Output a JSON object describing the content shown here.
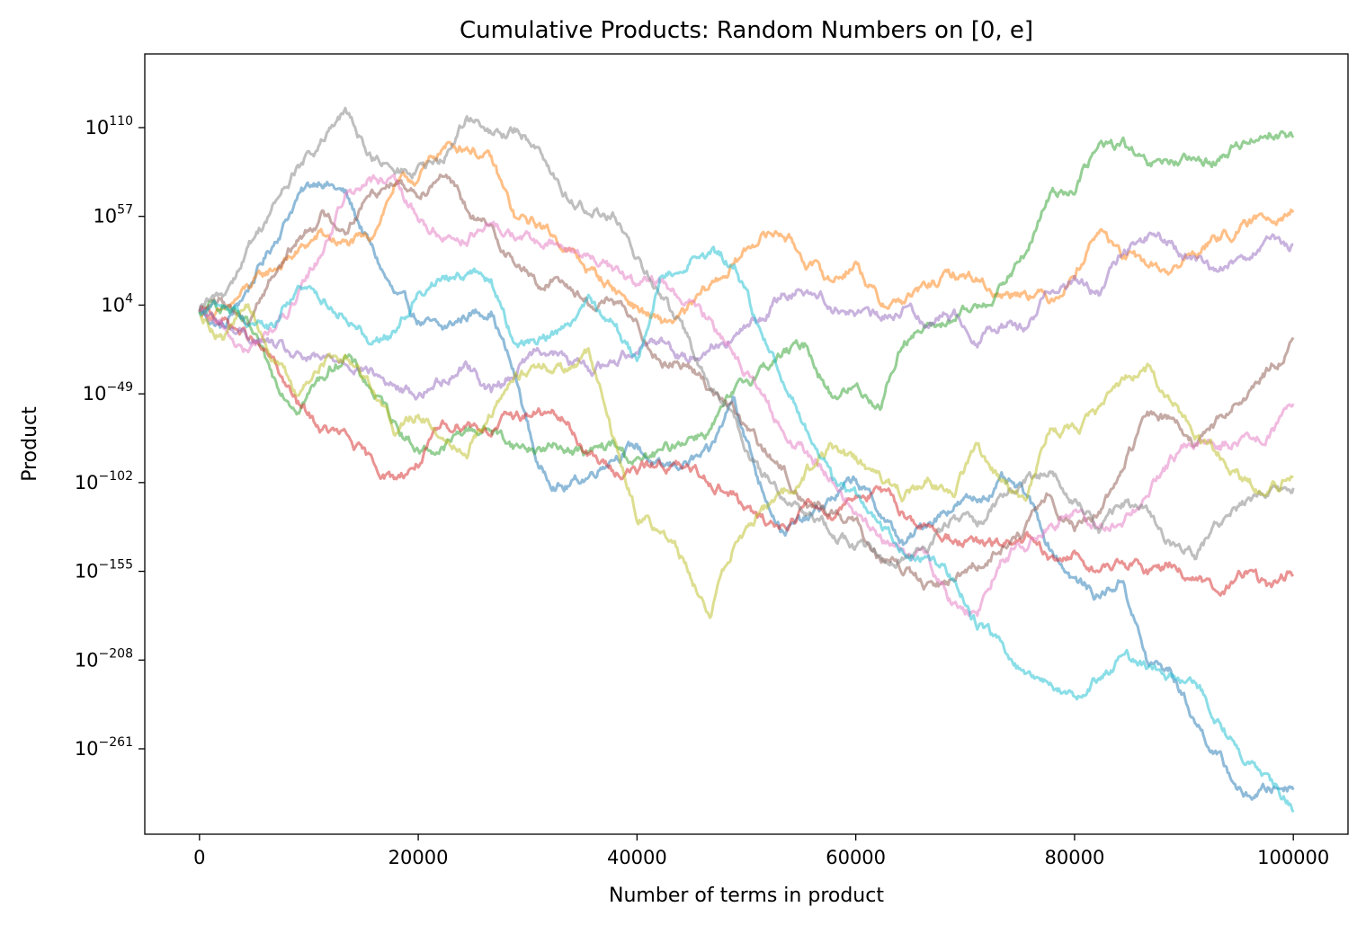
{
  "chart_data": {
    "type": "line",
    "title": "Cumulative Products: Random Numbers on [0, e]",
    "xlabel": "Number of terms in product",
    "ylabel": "Product",
    "x_ticks": [
      0,
      20000,
      40000,
      60000,
      80000,
      100000
    ],
    "y_scale": "log",
    "y_tick_exponents": [
      110,
      57,
      4,
      -49,
      -102,
      -155,
      -208,
      -261
    ],
    "y_tick_base": "10",
    "xlim": [
      -5000,
      105000
    ],
    "ylim_log10": [
      -312,
      154
    ],
    "grid": false,
    "legend": "none",
    "series": [
      {
        "color": "#1f77b4",
        "log10_values": [
          0,
          -10,
          14,
          40,
          68,
          80,
          70,
          40,
          10,
          -5,
          -12,
          -2,
          2,
          -40,
          -95,
          -105,
          -98,
          -85,
          -80,
          -95,
          -90,
          -86,
          -50,
          -100,
          -130,
          -125,
          -112,
          -100,
          -120,
          -140,
          -125,
          -115,
          -112,
          -102,
          -110,
          -140,
          -160,
          -170,
          -160,
          -210,
          -215,
          -245,
          -268,
          -290,
          -285,
          -282
        ]
      },
      {
        "color": "#ff7f0e",
        "log10_values": [
          0,
          -2,
          14,
          25,
          35,
          46,
          40,
          43,
          75,
          80,
          98,
          100,
          90,
          55,
          52,
          40,
          25,
          15,
          3,
          -8,
          -2,
          15,
          28,
          45,
          48,
          30,
          18,
          30,
          5,
          7,
          15,
          22,
          20,
          10,
          14,
          8,
          23,
          50,
          33,
          28,
          24,
          36,
          45,
          50,
          58,
          62
        ]
      },
      {
        "color": "#2ca02c",
        "log10_values": [
          0,
          4,
          -10,
          -40,
          -55,
          -40,
          -25,
          -45,
          -65,
          -82,
          -82,
          -70,
          -70,
          -80,
          -82,
          -80,
          -85,
          -80,
          -90,
          -85,
          -75,
          -70,
          -50,
          -35,
          -25,
          -20,
          -50,
          -45,
          -55,
          -15,
          -10,
          -5,
          2,
          15,
          35,
          70,
          75,
          98,
          100,
          85,
          90,
          88,
          92,
          102,
          108,
          105
        ]
      },
      {
        "color": "#d62728",
        "log10_values": [
          0,
          -5,
          -15,
          -30,
          -55,
          -70,
          -75,
          -90,
          -100,
          -90,
          -70,
          -65,
          -70,
          -62,
          -60,
          -65,
          -85,
          -95,
          -95,
          -90,
          -95,
          -100,
          -110,
          -125,
          -128,
          -115,
          -120,
          -108,
          -108,
          -120,
          -130,
          -135,
          -140,
          -140,
          -135,
          -150,
          -145,
          -155,
          -150,
          -155,
          -150,
          -160,
          -170,
          -155,
          -165,
          -155
        ]
      },
      {
        "color": "#9467bd",
        "log10_values": [
          0,
          -8,
          -15,
          -20,
          -28,
          -30,
          -28,
          -35,
          -45,
          -50,
          -40,
          -30,
          -48,
          -35,
          -20,
          -28,
          -35,
          -30,
          -20,
          -15,
          -28,
          -20,
          -15,
          -5,
          10,
          15,
          5,
          0,
          -5,
          2,
          -5,
          0,
          -15,
          -5,
          -10,
          15,
          20,
          10,
          35,
          45,
          40,
          28,
          25,
          35,
          40,
          38
        ]
      },
      {
        "color": "#8c564b",
        "log10_values": [
          0,
          5,
          -5,
          22,
          42,
          58,
          50,
          70,
          80,
          72,
          85,
          60,
          48,
          30,
          15,
          20,
          5,
          8,
          -10,
          -28,
          -30,
          -45,
          -60,
          -80,
          -95,
          -115,
          -118,
          -128,
          -145,
          -155,
          -165,
          -160,
          -150,
          -140,
          -130,
          -110,
          -130,
          -120,
          -95,
          -60,
          -65,
          -80,
          -65,
          -50,
          -35,
          -20
        ]
      },
      {
        "color": "#e377c2",
        "log10_values": [
          0,
          -12,
          -25,
          -10,
          5,
          35,
          70,
          80,
          75,
          55,
          45,
          45,
          50,
          46,
          40,
          38,
          35,
          25,
          15,
          18,
          5,
          -5,
          -22,
          -48,
          -72,
          -85,
          -100,
          -120,
          -135,
          -145,
          -150,
          -175,
          -180,
          -145,
          -140,
          -125,
          -120,
          -130,
          -125,
          -110,
          -90,
          -75,
          -80,
          -75,
          -70,
          -60
        ]
      },
      {
        "color": "#7f7f7f",
        "log10_values": [
          0,
          10,
          38,
          62,
          85,
          100,
          118,
          95,
          82,
          85,
          88,
          118,
          105,
          108,
          100,
          70,
          60,
          58,
          30,
          10,
          -15,
          -45,
          -65,
          -95,
          -110,
          -120,
          -130,
          -140,
          -145,
          -145,
          -140,
          -125,
          -125,
          -110,
          -100,
          -95,
          -110,
          -130,
          -115,
          -120,
          -140,
          -145,
          -125,
          -115,
          -110,
          -105
        ]
      },
      {
        "color": "#bcbd22",
        "log10_values": [
          0,
          -15,
          5,
          -25,
          -50,
          -30,
          -25,
          -40,
          -70,
          -60,
          -75,
          -80,
          -60,
          -40,
          -30,
          -35,
          -25,
          -75,
          -120,
          -130,
          -150,
          -180,
          -140,
          -120,
          -110,
          -95,
          -80,
          -90,
          -100,
          -110,
          -100,
          -110,
          -80,
          -100,
          -110,
          -70,
          -70,
          -60,
          -40,
          -35,
          -55,
          -72,
          -85,
          -100,
          -110,
          -95
        ]
      },
      {
        "color": "#17becf",
        "log10_values": [
          0,
          5,
          -5,
          -10,
          15,
          8,
          0,
          -15,
          -15,
          15,
          20,
          25,
          18,
          -20,
          -15,
          -10,
          10,
          -5,
          -30,
          20,
          30,
          35,
          28,
          -10,
          -40,
          -70,
          -100,
          -110,
          -130,
          -140,
          -145,
          -160,
          -185,
          -200,
          -220,
          -225,
          -230,
          -218,
          -205,
          -215,
          -220,
          -220,
          -245,
          -270,
          -278,
          -295
        ]
      }
    ]
  }
}
